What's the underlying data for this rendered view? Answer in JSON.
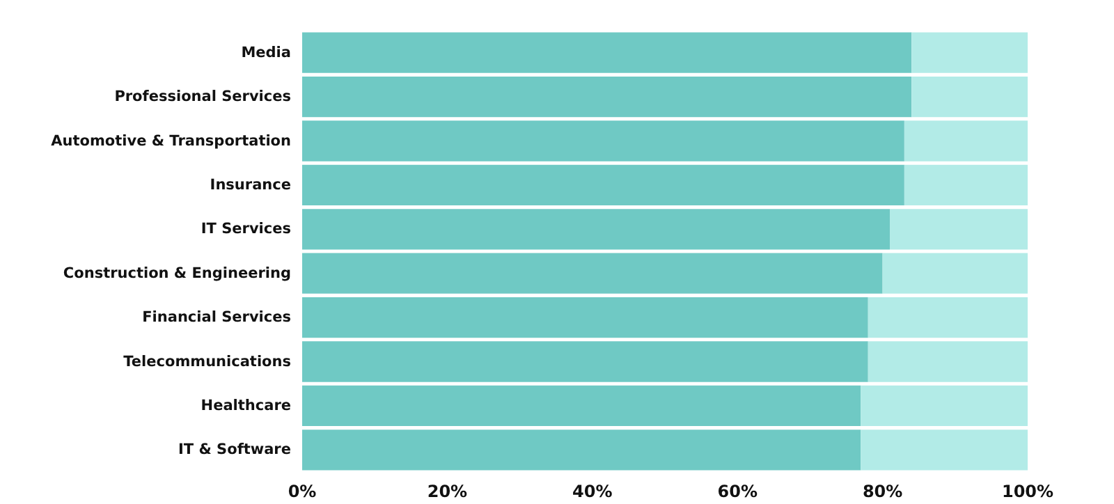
{
  "chart_data": {
    "type": "bar",
    "orientation": "horizontal",
    "stacked": true,
    "categories": [
      "Media",
      "Professional Services",
      "Automotive & Transportation",
      "Insurance",
      "IT Services",
      "Construction & Engineering",
      "Financial Services",
      "Telecommunications",
      "Healthcare",
      "IT & Software"
    ],
    "series": [
      {
        "color": "#6fc9c4",
        "values": [
          84,
          84,
          83,
          83,
          81,
          80,
          78,
          78,
          77,
          77
        ]
      },
      {
        "color": "#b2ebe7",
        "values": [
          16,
          16,
          17,
          17,
          19,
          20,
          22,
          22,
          23,
          23
        ]
      }
    ],
    "xlim": [
      0,
      100
    ],
    "xticks": [
      {
        "value": 0,
        "label": "0%"
      },
      {
        "value": 20,
        "label": "20%"
      },
      {
        "value": 40,
        "label": "40%"
      },
      {
        "value": 60,
        "label": "60%"
      },
      {
        "value": 80,
        "label": "80%"
      },
      {
        "value": 100,
        "label": "100%"
      }
    ],
    "grid": false
  }
}
